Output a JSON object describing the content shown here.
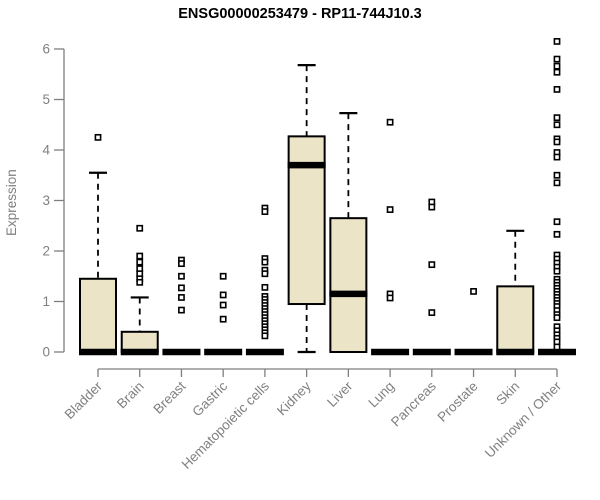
{
  "header": {
    "title": "ENSG00000253479 - RP11-744J10.3"
  },
  "chart_data": {
    "type": "boxplot",
    "title": "ENSG00000253479 - RP11-744J10.3",
    "xlabel": "",
    "ylabel": "Expression",
    "ylim": [
      0,
      6
    ],
    "yticks": [
      0,
      1,
      2,
      3,
      4,
      5,
      6
    ],
    "grid": false,
    "legend": "none",
    "categories": [
      "Bladder",
      "Brain",
      "Breast",
      "Gastric",
      "Hematopoietic cells",
      "Kidney",
      "Liver",
      "Lung",
      "Pancreas",
      "Prostate",
      "Skin",
      "Unknown / Other"
    ],
    "series": [
      {
        "name": "Bladder",
        "box": {
          "whisker_low": 0,
          "q1": 0,
          "median": 0,
          "q3": 1.45,
          "whisker_high": 3.55
        },
        "outliers": [
          4.25
        ]
      },
      {
        "name": "Brain",
        "box": {
          "whisker_low": 0,
          "q1": 0,
          "median": 0,
          "q3": 0.4,
          "whisker_high": 1.08
        },
        "outliers": [
          2.45,
          1.9,
          1.78,
          1.65,
          1.55,
          1.45,
          1.38
        ]
      },
      {
        "name": "Breast",
        "box": {
          "whisker_low": 0,
          "q1": 0,
          "median": 0,
          "q3": 0,
          "whisker_high": 0
        },
        "outliers": [
          1.82,
          1.75,
          1.5,
          1.27,
          1.08,
          0.83
        ]
      },
      {
        "name": "Gastric",
        "box": {
          "whisker_low": 0,
          "q1": 0,
          "median": 0,
          "q3": 0,
          "whisker_high": 0
        },
        "outliers": [
          1.5,
          1.13,
          0.93,
          0.65
        ]
      },
      {
        "name": "Hematopoietic cells",
        "box": {
          "whisker_low": 0,
          "q1": 0,
          "median": 0,
          "q3": 0,
          "whisker_high": 0
        },
        "outliers": [
          2.85,
          2.78,
          1.85,
          1.78,
          1.62,
          1.55,
          1.28,
          1.1,
          1.04,
          0.98,
          0.92,
          0.86,
          0.8,
          0.74,
          0.68,
          0.62,
          0.56,
          0.5,
          0.44,
          0.38,
          0.32
        ]
      },
      {
        "name": "Kidney",
        "box": {
          "whisker_low": 0,
          "q1": 0.95,
          "median": 3.7,
          "q3": 4.27,
          "whisker_high": 5.68
        },
        "outliers": []
      },
      {
        "name": "Liver",
        "box": {
          "whisker_low": 0,
          "q1": 0,
          "median": 1.15,
          "q3": 2.65,
          "whisker_high": 4.73
        },
        "outliers": []
      },
      {
        "name": "Lung",
        "box": {
          "whisker_low": 0,
          "q1": 0,
          "median": 0,
          "q3": 0,
          "whisker_high": 0
        },
        "outliers": [
          4.55,
          2.82,
          1.15,
          1.07
        ]
      },
      {
        "name": "Pancreas",
        "box": {
          "whisker_low": 0,
          "q1": 0,
          "median": 0,
          "q3": 0,
          "whisker_high": 0
        },
        "outliers": [
          2.97,
          2.87,
          1.73,
          0.78
        ]
      },
      {
        "name": "Prostate",
        "box": {
          "whisker_low": 0,
          "q1": 0,
          "median": 0,
          "q3": 0,
          "whisker_high": 0
        },
        "outliers": [
          1.2
        ]
      },
      {
        "name": "Skin",
        "box": {
          "whisker_low": 0,
          "q1": 0,
          "median": 0,
          "q3": 1.3,
          "whisker_high": 2.4
        },
        "outliers": []
      },
      {
        "name": "Unknown / Other",
        "box": {
          "whisker_low": 0,
          "q1": 0,
          "median": 0,
          "q3": 0,
          "whisker_high": 0
        },
        "outliers": [
          6.15,
          5.8,
          5.66,
          5.54,
          5.2,
          4.64,
          4.5,
          4.22,
          4.16,
          3.95,
          3.86,
          3.5,
          3.35,
          2.58,
          2.33,
          1.92,
          1.84,
          1.76,
          1.68,
          1.6,
          1.44,
          1.38,
          1.32,
          1.26,
          1.2,
          1.14,
          1.08,
          1.02,
          0.96,
          0.9,
          0.82,
          0.74,
          0.68,
          0.5,
          0.42,
          0.34,
          0.27,
          0.2,
          0.1
        ]
      }
    ],
    "colors": {
      "box_fill": "#EBE4C6",
      "box_border": "#000000",
      "median": "#000000",
      "whisker": "#000000",
      "outlier_fill": "#FFFFFF",
      "axis": "#7F7F7F",
      "label": "#808080",
      "title": "#000000",
      "background": "#FFFFFF"
    }
  }
}
